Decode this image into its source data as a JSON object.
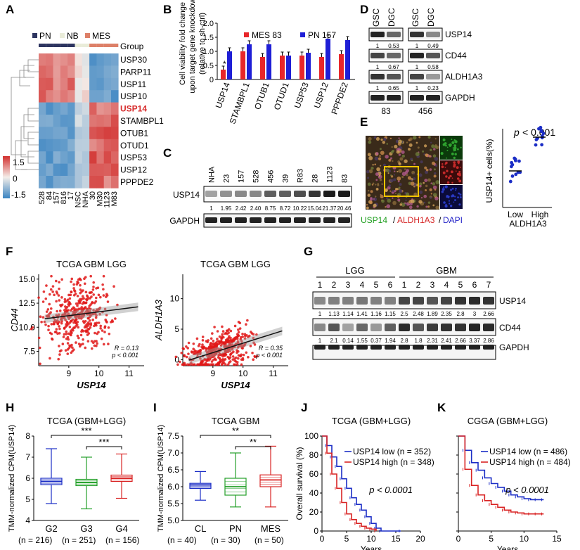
{
  "panels": {
    "A": {
      "label": "A",
      "legend": {
        "pn": "PN",
        "nb": "NB",
        "mes": "MES",
        "group": "Group"
      },
      "genes": [
        "USP30",
        "PARP11",
        "USP11",
        "USP10",
        "USP14",
        "STAMBPL1",
        "OTUB1",
        "OTUD1",
        "USP53",
        "USP12",
        "PPPDE2"
      ],
      "highlight_gene": "USP14",
      "samples": [
        "528",
        "84",
        "157",
        "816",
        "17",
        "NSC",
        "NHA",
        "30",
        "M30",
        "1123",
        "M83"
      ],
      "scale": {
        "max": "1.5",
        "mid": "0",
        "min": "-1.5"
      },
      "colors": {
        "pn": "#2d3560",
        "nb": "#e9ecd9",
        "mes": "#dd8068",
        "high": "#d2302f",
        "low": "#3a84c2",
        "highlight": "#d72c2c"
      }
    },
    "B": {
      "label": "B",
      "legend": {
        "mes": "MES 83",
        "pn": "PN 157"
      },
      "star": "*",
      "colors": {
        "mes": "#e8262a",
        "pn": "#1f1fd6"
      }
    },
    "C": {
      "label": "C",
      "lanes": [
        "NHA",
        "23",
        "157",
        "528",
        "456",
        "39",
        "R83",
        "28",
        "1123",
        "83"
      ],
      "values": [
        "1",
        "1.95",
        "2.42",
        "2.40",
        "8.75",
        "8.72",
        "10.22",
        "15.04",
        "21.37",
        "20.46"
      ],
      "rows": [
        "USP14",
        "GAPDH"
      ]
    },
    "D": {
      "label": "D",
      "col_headers": [
        "GSC",
        "DGC",
        "GSC",
        "DGC"
      ],
      "rows": [
        "USP14",
        "CD44",
        "ALDH1A3",
        "GAPDH"
      ],
      "values_usp14": [
        "1",
        "0.53",
        "1",
        "0.49"
      ],
      "values_cd44": [
        "1",
        "0.67",
        "1",
        "0.58"
      ],
      "values_aldh": [
        "1",
        "0.65",
        "1",
        "0.23"
      ],
      "groups": [
        "83",
        "456"
      ]
    },
    "E": {
      "label": "E",
      "pvalue_p": "p",
      "pvalue_rest": "< 0.001",
      "ylabel": "USP14+ cells(%)",
      "xticks": [
        "Low",
        "High"
      ],
      "xlabel": "ALDH1A3",
      "stain_usp14": "USP14",
      "stain_aldh": "ALDH1A3",
      "stain_dapi": "DAPI",
      "slash": "/"
    },
    "F": {
      "label": "F",
      "plot1_title": "TCGA GBM LGG",
      "plot1_ylabel": "CD44",
      "plot1_r": "R = 0.13",
      "plot1_p": "p < 0.001",
      "plot2_title": "TCGA GBM LGG",
      "plot2_ylabel": "ALDH1A3",
      "plot2_r": "R = 0.35",
      "plot2_p": "p < 0.001",
      "xlabel": "USP14"
    },
    "G": {
      "label": "G",
      "lgg": "LGG",
      "gbm": "GBM",
      "lanes": [
        "1",
        "2",
        "3",
        "4",
        "5",
        "6",
        "1",
        "2",
        "3",
        "4",
        "5",
        "6",
        "7"
      ],
      "usp14_values": [
        "1",
        "1.13",
        "1.14",
        "1.41",
        "1.16",
        "1.15",
        "2.5",
        "2.48",
        "1.89",
        "2.35",
        "2.8",
        "3",
        "2.66"
      ],
      "cd44_values": [
        "1",
        "2.1",
        "0.14",
        "1.55",
        "0.37",
        "1.94",
        "2.8",
        "1.8",
        "2.31",
        "2.41",
        "2.66",
        "3.37",
        "2.86"
      ],
      "rows": [
        "USP14",
        "CD44",
        "GAPDH"
      ]
    },
    "H": {
      "label": "H",
      "title": "TCGA (GBM+LGG)",
      "ylabel": "TMM-normalized CPM(USP14)",
      "groups": [
        "G2",
        "G3",
        "G4"
      ],
      "n": [
        "(n = 216)",
        "(n = 251)",
        "(n = 156)"
      ],
      "sig": [
        "***",
        "***"
      ]
    },
    "I": {
      "label": "I",
      "title": "TCGA GBM",
      "ylabel": "TMM-normalized CPM(USP14)",
      "groups": [
        "CL",
        "PN",
        "MES"
      ],
      "n": [
        "(n = 40)",
        "(n = 30)",
        "(n = 50)"
      ],
      "sig": [
        "**",
        "**"
      ]
    },
    "J": {
      "label": "J",
      "title": "TCGA (GBM+LGG)",
      "ylabel": "Overall survival (%)",
      "xlabel": "Years",
      "legend_low": "USP14 low (n = 352)",
      "legend_high": "USP14 high (n = 348)",
      "pvalue": "p < 0.0001"
    },
    "K": {
      "label": "K",
      "title": "CGGA (GBM+LGG)",
      "xlabel": "Years",
      "legend_low": "USP14 low (n = 486)",
      "legend_high": "USP14 high (n = 484)",
      "pvalue": "p < 0.0001"
    }
  },
  "chart_data": [
    {
      "type": "bar",
      "title": "",
      "ylabel": "Cell viability fold change upon target gene knockdown (relative to sh-ctrl)",
      "categories": [
        "USP14",
        "STAMBPL1",
        "OTUB1",
        "OTUD1",
        "USP53",
        "USP12",
        "PPPDE2"
      ],
      "series": [
        {
          "name": "MES 83",
          "values": [
            0.35,
            1.0,
            0.8,
            0.85,
            0.85,
            0.8,
            0.9
          ]
        },
        {
          "name": "PN 157",
          "values": [
            1.0,
            1.25,
            1.25,
            0.85,
            0.95,
            1.45,
            1.4
          ]
        }
      ],
      "ylim": [
        0,
        2
      ],
      "yticks": [
        "0",
        "0.5",
        "1.0",
        "1.5",
        "2.0"
      ]
    },
    {
      "type": "scatter",
      "title": "TCGA GBM LGG",
      "xlabel": "USP14",
      "ylabel": "CD44",
      "xlim": [
        8,
        11.5
      ],
      "ylim": [
        6,
        15.5
      ],
      "xticks": [
        "9",
        "10",
        "11"
      ],
      "yticks": [
        "7.5",
        "10.0",
        "12.5",
        "15.0"
      ],
      "fit": {
        "slope": 0.4,
        "intercept": 7.6
      }
    },
    {
      "type": "scatter",
      "title": "TCGA GBM LGG",
      "xlabel": "USP14",
      "ylabel": "ALDH1A3",
      "xlim": [
        8,
        11.5
      ],
      "ylim": [
        -1,
        14
      ],
      "xticks": [
        "9",
        "10",
        "11"
      ],
      "yticks": [
        "0",
        "5",
        "10"
      ],
      "fit": {
        "slope": 1.55,
        "intercept": -12.8
      }
    },
    {
      "type": "box",
      "title": "TCGA (GBM+LGG)",
      "ylabel": "TMM-normalized CPM(USP14)",
      "categories": [
        "G2",
        "G3",
        "G4"
      ],
      "ylim": [
        4,
        8
      ],
      "yticks": [
        "4",
        "5",
        "6",
        "7",
        "8"
      ],
      "boxes": [
        {
          "min": 4.8,
          "q1": 5.7,
          "median": 5.85,
          "q3": 6.0,
          "max": 7.4
        },
        {
          "min": 4.55,
          "q1": 5.65,
          "median": 5.8,
          "q3": 5.95,
          "max": 7.0
        },
        {
          "min": 5.05,
          "q1": 5.85,
          "median": 6.0,
          "q3": 6.15,
          "max": 7.15
        }
      ]
    },
    {
      "type": "box",
      "title": "TCGA GBM",
      "ylabel": "TMM-normalized CPM(USP14)",
      "categories": [
        "CL",
        "PN",
        "MES"
      ],
      "ylim": [
        5.0,
        7.5
      ],
      "yticks": [
        "5.0",
        "5.5",
        "6.0",
        "6.5",
        "7.0",
        "7.5"
      ],
      "boxes": [
        {
          "min": 5.6,
          "q1": 5.95,
          "median": 6.05,
          "q3": 6.1,
          "max": 6.45
        },
        {
          "min": 5.4,
          "q1": 5.75,
          "median": 6.0,
          "q3": 6.25,
          "max": 7.0
        },
        {
          "min": 5.4,
          "q1": 6.0,
          "median": 6.2,
          "q3": 6.35,
          "max": 7.2
        }
      ]
    },
    {
      "type": "line",
      "title": "TCGA (GBM+LGG)",
      "xlabel": "Years",
      "ylabel": "Overall survival (%)",
      "xlim": [
        0,
        20
      ],
      "ylim": [
        0,
        100
      ],
      "xticks": [
        "0",
        "5",
        "10",
        "15",
        "20"
      ],
      "yticks": [
        "0",
        "20",
        "40",
        "60",
        "80",
        "100"
      ],
      "series": [
        {
          "name": "USP14 low (n = 352)",
          "x": [
            0,
            1,
            2,
            3,
            4,
            5,
            6,
            7,
            8,
            9,
            10,
            11,
            12,
            16
          ],
          "y": [
            100,
            90,
            78,
            68,
            55,
            45,
            35,
            28,
            22,
            15,
            8,
            3,
            0,
            0
          ]
        },
        {
          "name": "USP14 high (n = 348)",
          "x": [
            0,
            1,
            2,
            3,
            4,
            5,
            6,
            7,
            8,
            9,
            10,
            11
          ],
          "y": [
            100,
            82,
            60,
            45,
            30,
            18,
            12,
            8,
            5,
            3,
            2,
            0
          ]
        }
      ]
    },
    {
      "type": "line",
      "title": "CGGA (GBM+LGG)",
      "xlabel": "Years",
      "xlim": [
        0,
        15
      ],
      "ylim": [
        0,
        100
      ],
      "xticks": [
        "0",
        "5",
        "10",
        "15"
      ],
      "series": [
        {
          "name": "USP14 low (n = 486)",
          "x": [
            0,
            1,
            2,
            3,
            4,
            5,
            6,
            7,
            8,
            9,
            10,
            11,
            12,
            13
          ],
          "y": [
            100,
            85,
            72,
            64,
            56,
            50,
            46,
            42,
            38,
            36,
            34,
            33,
            33,
            33
          ]
        },
        {
          "name": "USP14 high (n = 484)",
          "x": [
            0,
            1,
            2,
            3,
            4,
            5,
            6,
            7,
            8,
            9,
            10,
            11,
            12,
            13
          ],
          "y": [
            100,
            65,
            48,
            38,
            32,
            28,
            25,
            22,
            20,
            19,
            18,
            18,
            18,
            18
          ]
        }
      ]
    }
  ]
}
